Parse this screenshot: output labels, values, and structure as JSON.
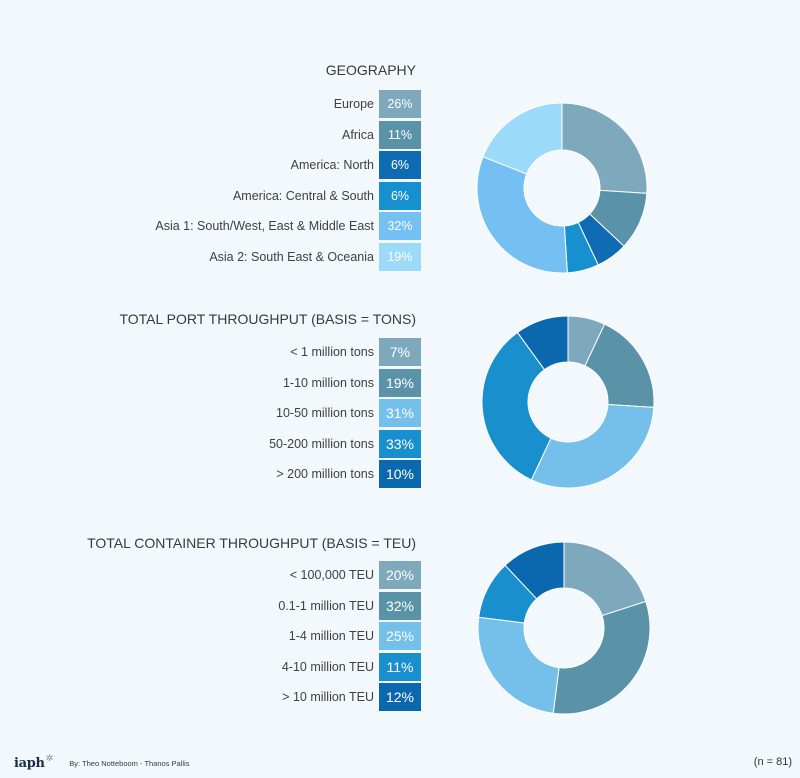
{
  "chart_data": [
    {
      "type": "pie",
      "title": "GEOGRAPHY",
      "categories": [
        "Europe",
        "Africa",
        "America: North",
        "America: Central & South",
        "Asia 1: South/West, East & Middle East",
        "Asia 2: South East & Oceania"
      ],
      "labels": [
        "26%",
        "11%",
        "6%",
        "6%",
        "32%",
        "19%"
      ],
      "values": [
        26,
        11,
        6,
        6,
        32,
        19
      ],
      "colors": [
        "#7ea9bd",
        "#5a92a8",
        "#0f6cb4",
        "#1790d0",
        "#75c0f2",
        "#9bdaf8"
      ]
    },
    {
      "type": "pie",
      "title": "TOTAL PORT THROUGHPUT (BASIS = TONS)",
      "categories": [
        "< 1 million tons",
        "1-10 million tons",
        "10-50 million tons",
        "50-200 million tons",
        "> 200 million tons"
      ],
      "labels": [
        "7%",
        "19%",
        "31%",
        "33%",
        "10%"
      ],
      "values": [
        7,
        19,
        31,
        33,
        10
      ],
      "colors": [
        "#7ea9bd",
        "#5a92a8",
        "#75c0ea",
        "#1a8fcd",
        "#0b68ae"
      ]
    },
    {
      "type": "pie",
      "title": "TOTAL CONTAINER THROUGHPUT (BASIS = TEU)",
      "categories": [
        "< 100,000 TEU",
        "0.1-1 million TEU",
        "1-4 million TEU",
        "4-10 million TEU",
        "> 10 million TEU"
      ],
      "labels": [
        "20%",
        "32%",
        "25%",
        "11%",
        "12%"
      ],
      "values": [
        20,
        32,
        25,
        11,
        12
      ],
      "colors": [
        "#7ea9bd",
        "#5a92a8",
        "#75c0ea",
        "#1a8fcd",
        "#0b68ae"
      ]
    }
  ],
  "footer": {
    "logo": "iaph",
    "credit": "By: Theo Notteboom - Thanos Pallis",
    "n_label": "(n = 81)"
  }
}
